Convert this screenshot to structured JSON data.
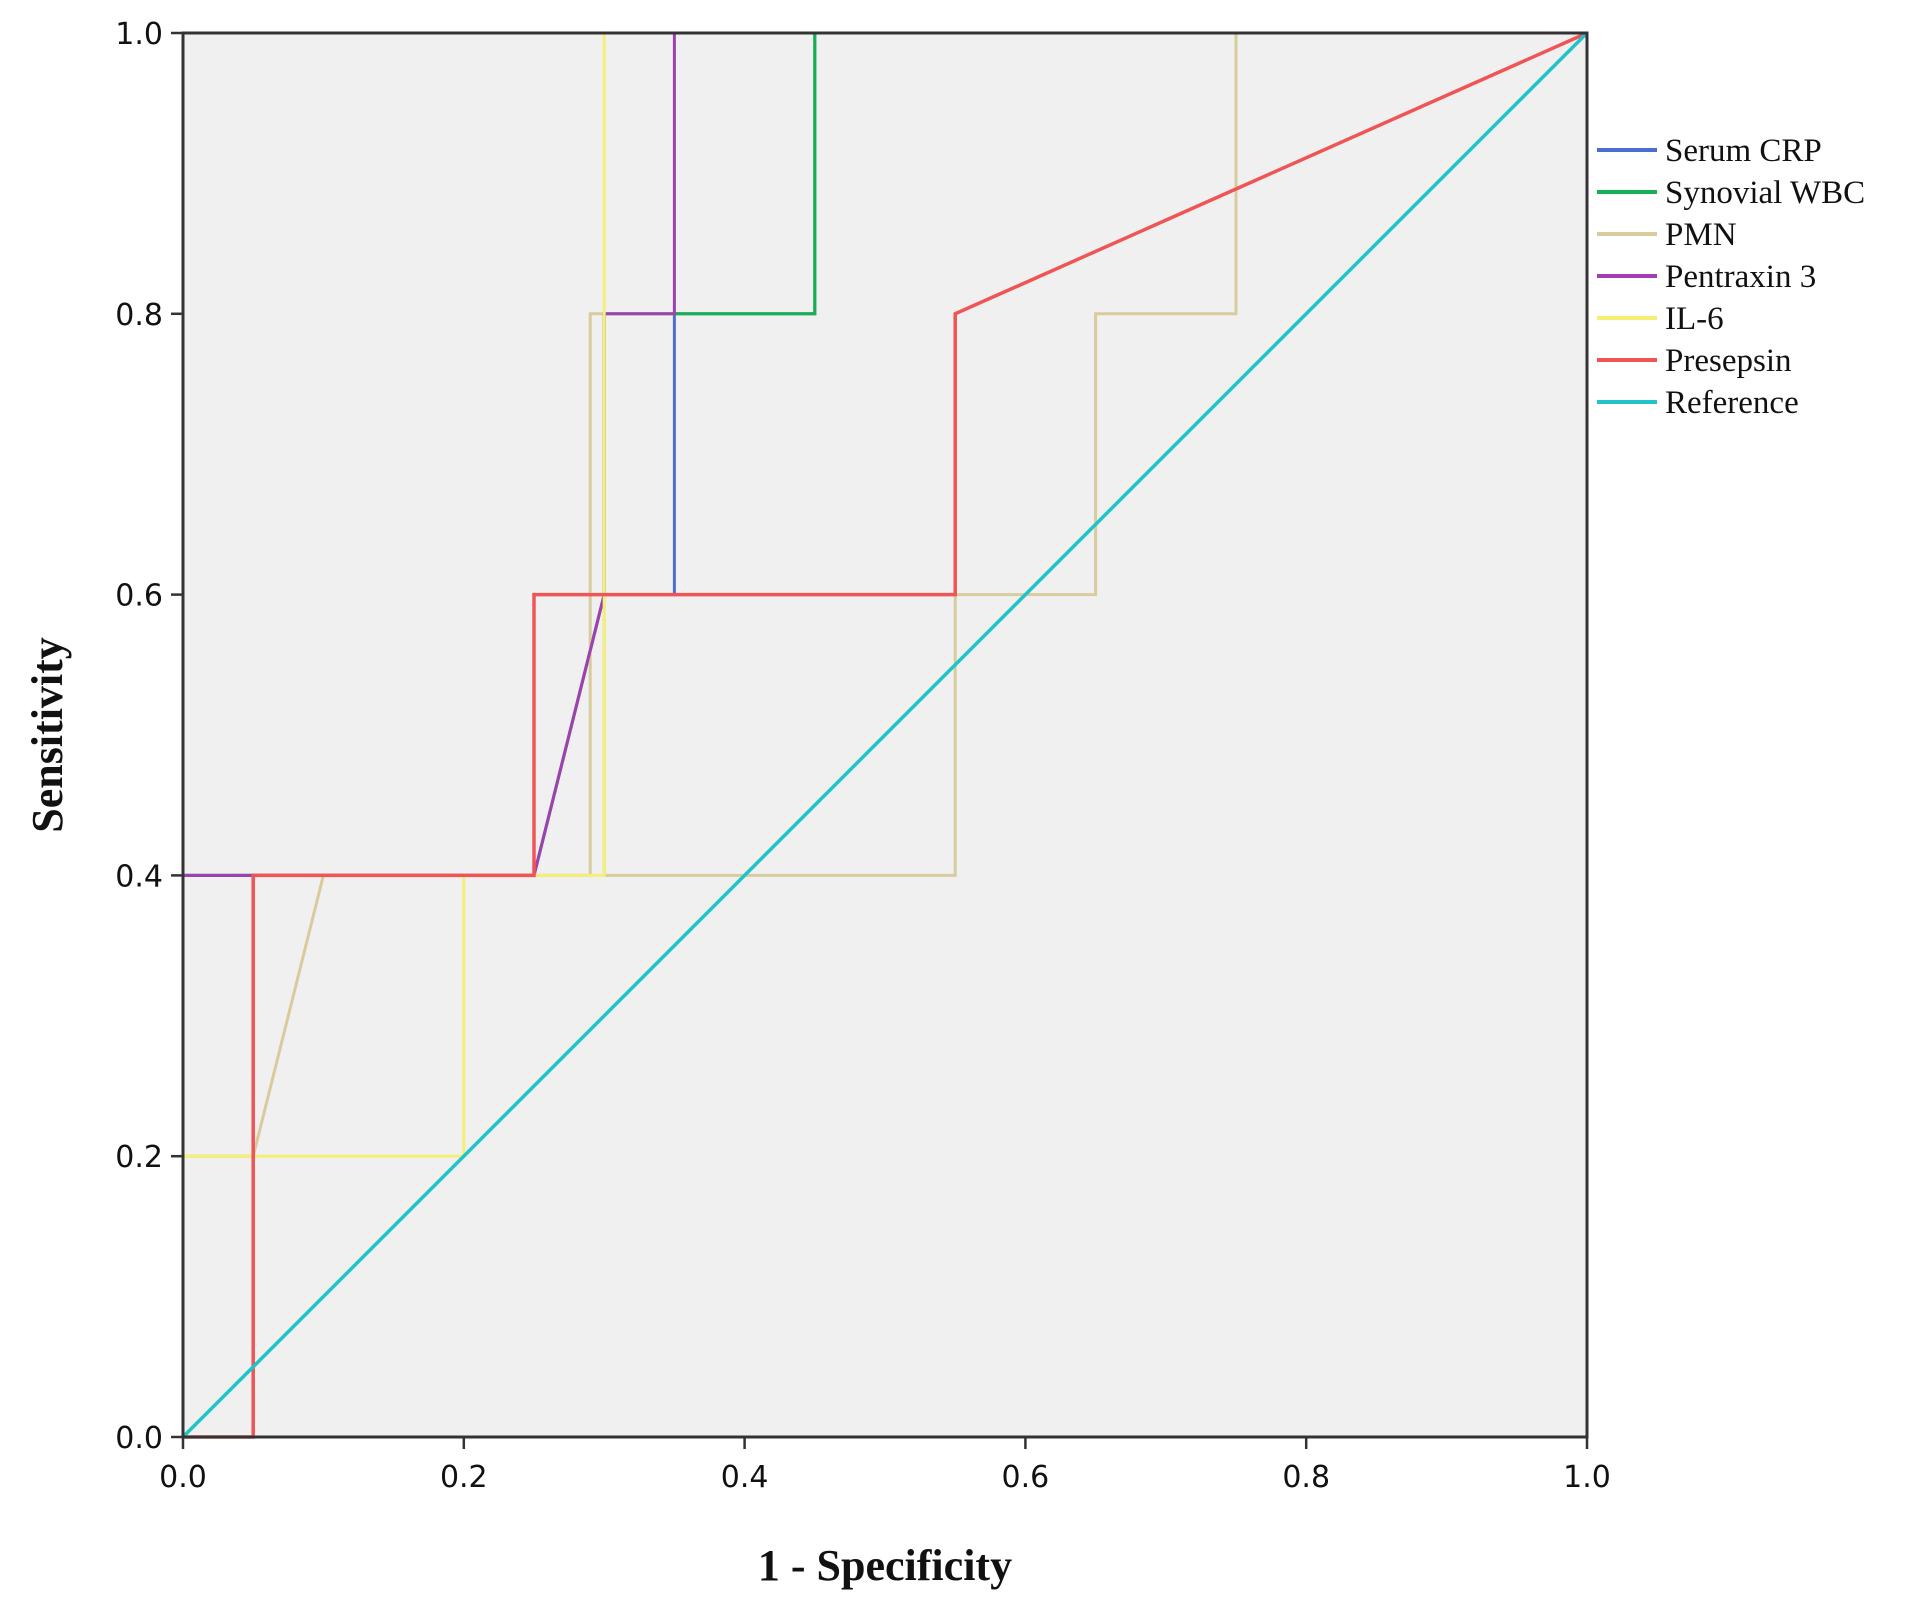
{
  "chart_data": {
    "type": "line",
    "title": "",
    "xlabel": "1 - Specificity",
    "ylabel": "Sensitivity",
    "xlim": [
      0,
      1
    ],
    "ylim": [
      0,
      1
    ],
    "x_ticks": [
      "0.0",
      "0.2",
      "0.4",
      "0.6",
      "0.8",
      "1.0"
    ],
    "y_ticks": [
      "0.0",
      "0.2",
      "0.4",
      "0.6",
      "0.8",
      "1.0"
    ],
    "grid": false,
    "legend_position": "right",
    "plot_background": "#f0f0f0",
    "series": [
      {
        "name": "Serum CRP",
        "color": "#4a6fd0",
        "points": [
          [
            0,
            0
          ],
          [
            0,
            0.4
          ],
          [
            0.05,
            0.4
          ],
          [
            0.25,
            0.4
          ],
          [
            0.3,
            0.6
          ],
          [
            0.35,
            0.6
          ],
          [
            0.35,
            0.8
          ],
          [
            0.45,
            0.8
          ],
          [
            0.45,
            1
          ],
          [
            1,
            1
          ]
        ]
      },
      {
        "name": "Synovial WBC",
        "color": "#17b050",
        "points": [
          [
            0,
            0
          ],
          [
            0,
            0.4
          ],
          [
            0.05,
            0.4
          ],
          [
            0.25,
            0.4
          ],
          [
            0.3,
            0.6
          ],
          [
            0.3,
            0.8
          ],
          [
            0.45,
            0.8
          ],
          [
            0.45,
            1
          ],
          [
            1,
            1
          ]
        ]
      },
      {
        "name": "PMN",
        "color": "#d8cb9c",
        "points": [
          [
            0,
            0
          ],
          [
            0,
            0.2
          ],
          [
            0.05,
            0.2
          ],
          [
            0.1,
            0.4
          ],
          [
            0.29,
            0.4
          ],
          [
            0.29,
            0.8
          ],
          [
            0.3,
            0.8
          ],
          [
            0.3,
            0.4
          ],
          [
            0.55,
            0.4
          ],
          [
            0.55,
            0.6
          ],
          [
            0.65,
            0.6
          ],
          [
            0.65,
            0.8
          ],
          [
            0.75,
            0.8
          ],
          [
            0.75,
            1
          ],
          [
            1,
            1
          ]
        ]
      },
      {
        "name": "Pentraxin 3",
        "color": "#a040b0",
        "points": [
          [
            0,
            0
          ],
          [
            0,
            0.4
          ],
          [
            0.05,
            0.4
          ],
          [
            0.25,
            0.4
          ],
          [
            0.3,
            0.6
          ],
          [
            0.3,
            0.8
          ],
          [
            0.35,
            0.8
          ],
          [
            0.35,
            1
          ],
          [
            1,
            1
          ]
        ]
      },
      {
        "name": "IL-6",
        "color": "#f5f075",
        "points": [
          [
            0,
            0
          ],
          [
            0,
            0.2
          ],
          [
            0.2,
            0.2
          ],
          [
            0.2,
            0.4
          ],
          [
            0.3,
            0.4
          ],
          [
            0.3,
            1
          ],
          [
            1,
            1
          ]
        ]
      },
      {
        "name": "Presepsin",
        "color": "#f05555",
        "points": [
          [
            0,
            0
          ],
          [
            0.05,
            0
          ],
          [
            0.05,
            0.4
          ],
          [
            0.25,
            0.4
          ],
          [
            0.25,
            0.6
          ],
          [
            0.55,
            0.6
          ],
          [
            0.55,
            0.8
          ],
          [
            1,
            1
          ]
        ]
      },
      {
        "name": "Reference",
        "color": "#1fc3c8",
        "points": [
          [
            0,
            0
          ],
          [
            1,
            1
          ]
        ]
      }
    ]
  }
}
